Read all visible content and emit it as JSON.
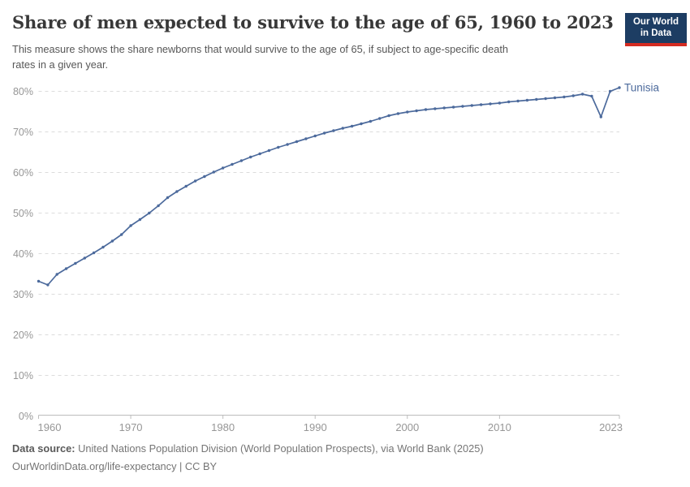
{
  "header": {
    "title": "Share of men expected to survive to the age of 65, 1960 to 2023",
    "subtitle_line1": "This measure shows the share newborns that would survive to the age of 65, if subject to age-specific death",
    "subtitle_line2": "rates in a given year.",
    "logo_line1": "Our World",
    "logo_line2": "in Data"
  },
  "chart_data": {
    "type": "line",
    "title": "Share of men expected to survive to the age of 65, 1960 to 2023",
    "xlabel": "",
    "ylabel": "",
    "ylim": [
      0,
      80
    ],
    "grid": "horizontal-dashed",
    "legend_position": "end-of-line-label",
    "x_ticks": [
      1960,
      1970,
      1980,
      1990,
      2000,
      2010,
      2023
    ],
    "y_ticks": [
      0,
      10,
      20,
      30,
      40,
      50,
      60,
      70,
      80
    ],
    "y_tick_suffix": "%",
    "x": [
      1960,
      1961,
      1962,
      1963,
      1964,
      1965,
      1966,
      1967,
      1968,
      1969,
      1970,
      1971,
      1972,
      1973,
      1974,
      1975,
      1976,
      1977,
      1978,
      1979,
      1980,
      1981,
      1982,
      1983,
      1984,
      1985,
      1986,
      1987,
      1988,
      1989,
      1990,
      1991,
      1992,
      1993,
      1994,
      1995,
      1996,
      1997,
      1998,
      1999,
      2000,
      2001,
      2002,
      2003,
      2004,
      2005,
      2006,
      2007,
      2008,
      2009,
      2010,
      2011,
      2012,
      2013,
      2014,
      2015,
      2016,
      2017,
      2018,
      2019,
      2020,
      2021,
      2022,
      2023
    ],
    "series": [
      {
        "name": "Tunisia",
        "color": "#4c6a9c",
        "values": [
          33.2,
          32.3,
          34.9,
          36.3,
          37.6,
          38.9,
          40.2,
          41.6,
          43.1,
          44.7,
          46.9,
          48.4,
          50.0,
          51.8,
          53.8,
          55.3,
          56.6,
          57.9,
          59.0,
          60.1,
          61.1,
          62.0,
          62.9,
          63.8,
          64.6,
          65.4,
          66.2,
          66.9,
          67.6,
          68.3,
          69.0,
          69.7,
          70.3,
          70.9,
          71.4,
          72.0,
          72.6,
          73.3,
          74.0,
          74.5,
          74.9,
          75.2,
          75.5,
          75.7,
          75.9,
          76.1,
          76.3,
          76.5,
          76.7,
          76.9,
          77.1,
          77.4,
          77.6,
          77.8,
          78.0,
          78.2,
          78.4,
          78.6,
          78.9,
          79.3,
          78.8,
          73.7,
          80.0,
          80.9
        ]
      }
    ],
    "colors": {
      "line": "#4c6a9c",
      "grid": "#dcdcdc",
      "axis": "#bcbcbc",
      "tick_label": "#969696",
      "entity_label": "#4c6a9c"
    }
  },
  "footer": {
    "source_label": "Data source:",
    "source_text": " United Nations Population Division (World Population Prospects), via World Bank (2025)",
    "link_line": "OurWorldinData.org/life-expectancy | CC BY"
  }
}
